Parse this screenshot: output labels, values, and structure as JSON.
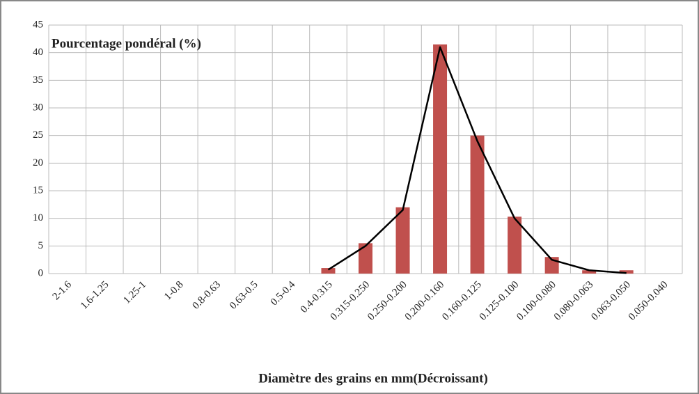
{
  "chart_data": {
    "type": "bar",
    "title": "Pourcentage  pondéral (%)",
    "x_label": "Diamètre des grains en mm(Décroissant)",
    "categories": [
      "2-1.6",
      "1.6-1.25",
      "1.25-1",
      "1-0.8",
      "0.8-0.63",
      "0.63-0.5",
      "0.5-0.4",
      "0.4-0.315",
      "0.315-0.250",
      "0.250-0.200",
      "0.200-0.160",
      "0.160-0.125",
      "0.125-0.100",
      "0.100-0.080",
      "0.080-0.063",
      "0.063-0.050",
      "0.050-0.040"
    ],
    "series": [
      {
        "type": "bar",
        "color": "#c0504d",
        "values": [
          0,
          0,
          0,
          0,
          0,
          0,
          0,
          1,
          5.5,
          12,
          41.5,
          25,
          10.3,
          3,
          0.6,
          0.6,
          0
        ]
      },
      {
        "type": "line",
        "color": "#000000",
        "values": [
          null,
          null,
          null,
          null,
          null,
          null,
          null,
          0.7,
          5,
          11.5,
          41,
          24,
          10,
          2.5,
          0.6,
          0.1,
          null
        ]
      }
    ],
    "ylim": [
      0,
      45
    ],
    "yticks": [
      0,
      5,
      10,
      15,
      20,
      25,
      30,
      35,
      40,
      45
    ],
    "grid": true
  }
}
